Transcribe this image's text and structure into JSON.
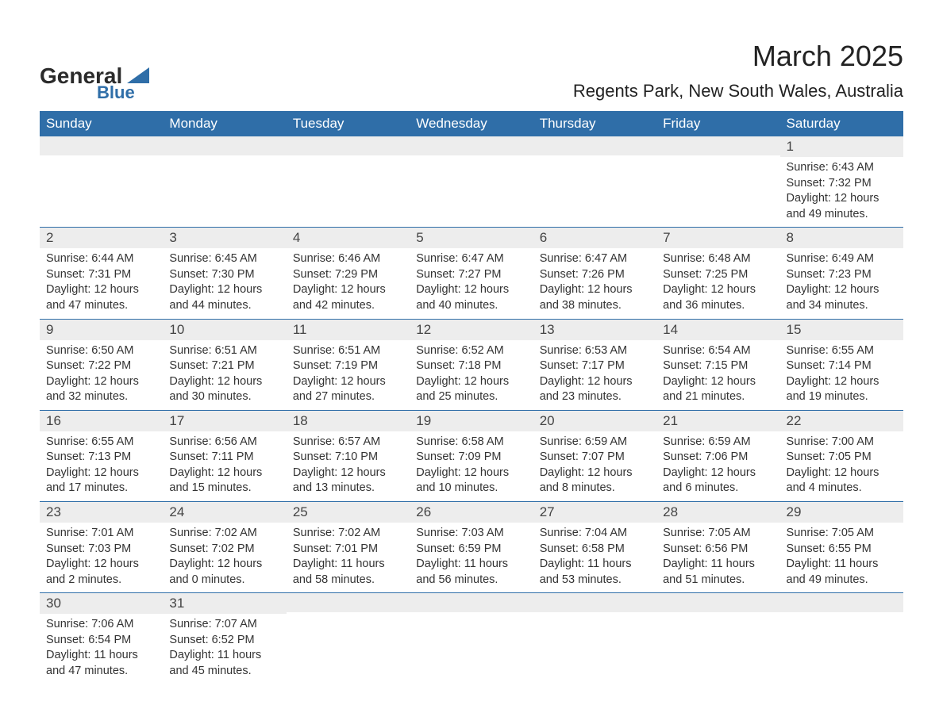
{
  "logo": {
    "general": "General",
    "blue": "Blue",
    "triangle_color": "#2f6ea8"
  },
  "title": "March 2025",
  "location": "Regents Park, New South Wales, Australia",
  "colors": {
    "header_bg": "#2f6ea8",
    "header_fg": "#ffffff",
    "daynum_bg": "#ededed",
    "border": "#2f6ea8",
    "text": "#333333"
  },
  "days_of_week": [
    "Sunday",
    "Monday",
    "Tuesday",
    "Wednesday",
    "Thursday",
    "Friday",
    "Saturday"
  ],
  "weeks": [
    [
      null,
      null,
      null,
      null,
      null,
      null,
      {
        "n": "1",
        "sunrise": "6:43 AM",
        "sunset": "7:32 PM",
        "daylight": "12 hours and 49 minutes."
      }
    ],
    [
      {
        "n": "2",
        "sunrise": "6:44 AM",
        "sunset": "7:31 PM",
        "daylight": "12 hours and 47 minutes."
      },
      {
        "n": "3",
        "sunrise": "6:45 AM",
        "sunset": "7:30 PM",
        "daylight": "12 hours and 44 minutes."
      },
      {
        "n": "4",
        "sunrise": "6:46 AM",
        "sunset": "7:29 PM",
        "daylight": "12 hours and 42 minutes."
      },
      {
        "n": "5",
        "sunrise": "6:47 AM",
        "sunset": "7:27 PM",
        "daylight": "12 hours and 40 minutes."
      },
      {
        "n": "6",
        "sunrise": "6:47 AM",
        "sunset": "7:26 PM",
        "daylight": "12 hours and 38 minutes."
      },
      {
        "n": "7",
        "sunrise": "6:48 AM",
        "sunset": "7:25 PM",
        "daylight": "12 hours and 36 minutes."
      },
      {
        "n": "8",
        "sunrise": "6:49 AM",
        "sunset": "7:23 PM",
        "daylight": "12 hours and 34 minutes."
      }
    ],
    [
      {
        "n": "9",
        "sunrise": "6:50 AM",
        "sunset": "7:22 PM",
        "daylight": "12 hours and 32 minutes."
      },
      {
        "n": "10",
        "sunrise": "6:51 AM",
        "sunset": "7:21 PM",
        "daylight": "12 hours and 30 minutes."
      },
      {
        "n": "11",
        "sunrise": "6:51 AM",
        "sunset": "7:19 PM",
        "daylight": "12 hours and 27 minutes."
      },
      {
        "n": "12",
        "sunrise": "6:52 AM",
        "sunset": "7:18 PM",
        "daylight": "12 hours and 25 minutes."
      },
      {
        "n": "13",
        "sunrise": "6:53 AM",
        "sunset": "7:17 PM",
        "daylight": "12 hours and 23 minutes."
      },
      {
        "n": "14",
        "sunrise": "6:54 AM",
        "sunset": "7:15 PM",
        "daylight": "12 hours and 21 minutes."
      },
      {
        "n": "15",
        "sunrise": "6:55 AM",
        "sunset": "7:14 PM",
        "daylight": "12 hours and 19 minutes."
      }
    ],
    [
      {
        "n": "16",
        "sunrise": "6:55 AM",
        "sunset": "7:13 PM",
        "daylight": "12 hours and 17 minutes."
      },
      {
        "n": "17",
        "sunrise": "6:56 AM",
        "sunset": "7:11 PM",
        "daylight": "12 hours and 15 minutes."
      },
      {
        "n": "18",
        "sunrise": "6:57 AM",
        "sunset": "7:10 PM",
        "daylight": "12 hours and 13 minutes."
      },
      {
        "n": "19",
        "sunrise": "6:58 AM",
        "sunset": "7:09 PM",
        "daylight": "12 hours and 10 minutes."
      },
      {
        "n": "20",
        "sunrise": "6:59 AM",
        "sunset": "7:07 PM",
        "daylight": "12 hours and 8 minutes."
      },
      {
        "n": "21",
        "sunrise": "6:59 AM",
        "sunset": "7:06 PM",
        "daylight": "12 hours and 6 minutes."
      },
      {
        "n": "22",
        "sunrise": "7:00 AM",
        "sunset": "7:05 PM",
        "daylight": "12 hours and 4 minutes."
      }
    ],
    [
      {
        "n": "23",
        "sunrise": "7:01 AM",
        "sunset": "7:03 PM",
        "daylight": "12 hours and 2 minutes."
      },
      {
        "n": "24",
        "sunrise": "7:02 AM",
        "sunset": "7:02 PM",
        "daylight": "12 hours and 0 minutes."
      },
      {
        "n": "25",
        "sunrise": "7:02 AM",
        "sunset": "7:01 PM",
        "daylight": "11 hours and 58 minutes."
      },
      {
        "n": "26",
        "sunrise": "7:03 AM",
        "sunset": "6:59 PM",
        "daylight": "11 hours and 56 minutes."
      },
      {
        "n": "27",
        "sunrise": "7:04 AM",
        "sunset": "6:58 PM",
        "daylight": "11 hours and 53 minutes."
      },
      {
        "n": "28",
        "sunrise": "7:05 AM",
        "sunset": "6:56 PM",
        "daylight": "11 hours and 51 minutes."
      },
      {
        "n": "29",
        "sunrise": "7:05 AM",
        "sunset": "6:55 PM",
        "daylight": "11 hours and 49 minutes."
      }
    ],
    [
      {
        "n": "30",
        "sunrise": "7:06 AM",
        "sunset": "6:54 PM",
        "daylight": "11 hours and 47 minutes."
      },
      {
        "n": "31",
        "sunrise": "7:07 AM",
        "sunset": "6:52 PM",
        "daylight": "11 hours and 45 minutes."
      },
      null,
      null,
      null,
      null,
      null
    ]
  ],
  "labels": {
    "sunrise": "Sunrise:",
    "sunset": "Sunset:",
    "daylight": "Daylight:"
  }
}
